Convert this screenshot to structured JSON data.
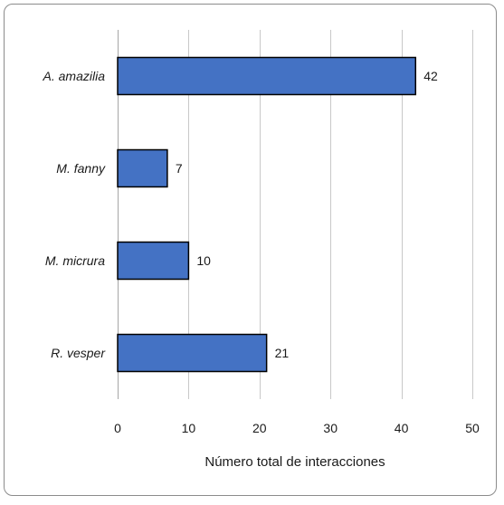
{
  "chart_data": {
    "type": "bar",
    "orientation": "horizontal",
    "categories": [
      "A. amazilia",
      "M. fanny",
      "M. micrura",
      "R. vesper"
    ],
    "values": [
      42,
      7,
      10,
      21
    ],
    "xlabel": "Número total de interacciones",
    "ylabel": "",
    "xlim": [
      0,
      50
    ],
    "xticks": [
      0,
      10,
      20,
      30,
      40,
      50
    ],
    "grid": "vertical",
    "data_labels": true,
    "bar_color": "#4472c4",
    "bar_edge_color": "#000000",
    "gridline_color": "#c8c8c8"
  }
}
